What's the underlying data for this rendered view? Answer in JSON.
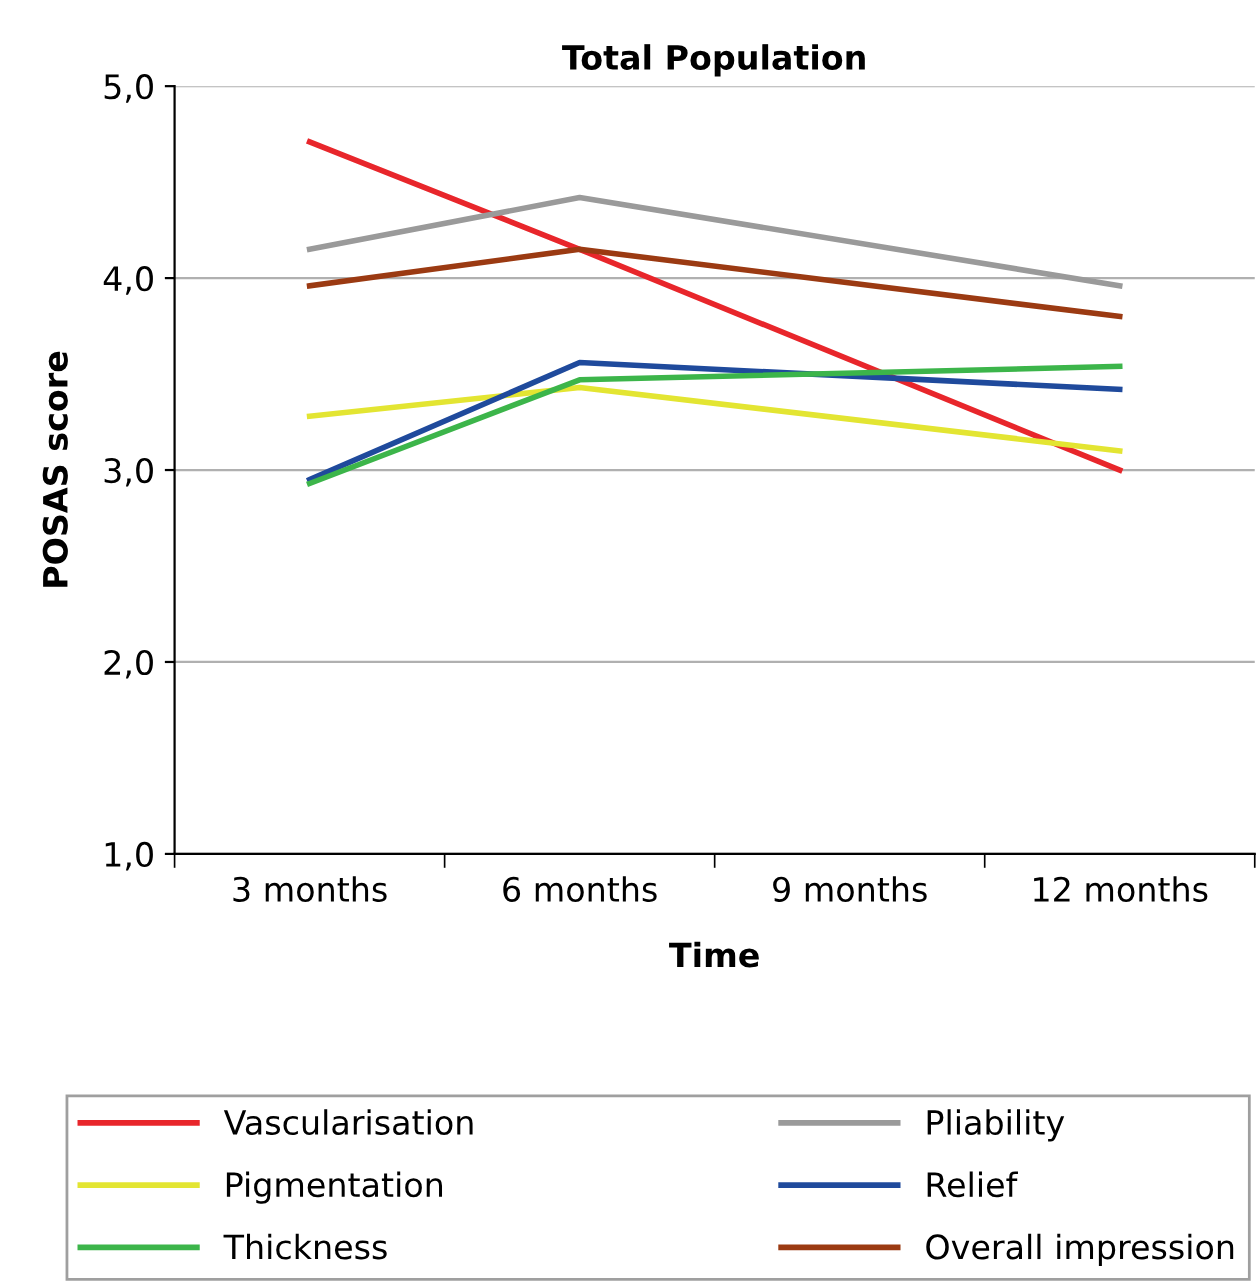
{
  "chart_data": {
    "type": "line",
    "title": "Total Population",
    "xlabel": "Time",
    "ylabel": "POSAS score",
    "categories": [
      "3 months",
      "6 months",
      "9 months",
      "12 months"
    ],
    "series": [
      {
        "name": "Vascularisation",
        "color": "#e8262b",
        "values": [
          4.71,
          4.15,
          null,
          3.0
        ]
      },
      {
        "name": "Pliability",
        "color": "#9a9a9a",
        "values": [
          4.15,
          4.42,
          null,
          3.96
        ]
      },
      {
        "name": "Pigmentation",
        "color": "#e3e532",
        "values": [
          3.28,
          3.43,
          null,
          3.1
        ]
      },
      {
        "name": "Relief",
        "color": "#1f4a9c",
        "values": [
          2.95,
          3.56,
          null,
          3.42
        ]
      },
      {
        "name": "Thickness",
        "color": "#3cb54a",
        "values": [
          2.93,
          3.47,
          null,
          3.54
        ]
      },
      {
        "name": "Overall impression",
        "color": "#9b3a12",
        "values": [
          3.96,
          4.15,
          null,
          3.8
        ]
      }
    ],
    "ylim": [
      1,
      5
    ],
    "yticks": [
      {
        "value": 1,
        "label": "1,0"
      },
      {
        "value": 2,
        "label": "2,0"
      },
      {
        "value": 3,
        "label": "3,0"
      },
      {
        "value": 4,
        "label": "4,0"
      },
      {
        "value": 5,
        "label": "5,0"
      }
    ],
    "grid": "y",
    "legend": "bottom",
    "marker": "none",
    "line_style": "solid"
  }
}
